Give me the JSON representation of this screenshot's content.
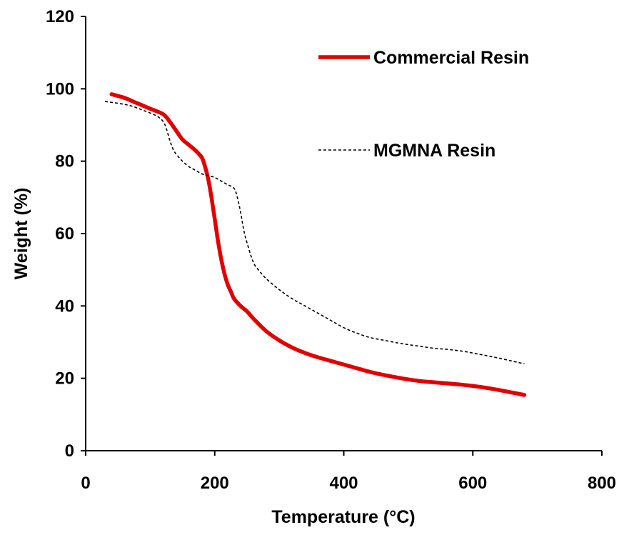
{
  "chart_data": {
    "type": "line",
    "title": "",
    "xlabel": "Temperature (°C)",
    "ylabel": "Weight  (%)",
    "xlim": [
      0,
      800
    ],
    "ylim": [
      0,
      120
    ],
    "xticks": [
      0,
      200,
      400,
      600,
      800
    ],
    "yticks": [
      0,
      20,
      40,
      60,
      80,
      100,
      120
    ],
    "grid": false,
    "legend_position": "top-right",
    "series": [
      {
        "name": "Commercial Resin",
        "color": "#e00000",
        "style": "solid",
        "x": [
          40,
          60,
          80,
          100,
          120,
          130,
          140,
          150,
          160,
          170,
          180,
          185,
          190,
          195,
          200,
          205,
          210,
          215,
          220,
          225,
          230,
          240,
          250,
          260,
          280,
          300,
          320,
          340,
          360,
          380,
          400,
          420,
          440,
          460,
          480,
          500,
          520,
          540,
          560,
          580,
          600,
          620,
          640,
          660,
          680
        ],
        "y": [
          98.5,
          97.5,
          96.0,
          94.5,
          93.0,
          91.0,
          88.5,
          86.0,
          84.5,
          83.0,
          81.0,
          78.5,
          75.0,
          70.0,
          64.0,
          58.0,
          53.0,
          49.0,
          46.0,
          44.0,
          42.0,
          40.0,
          38.5,
          36.5,
          33.0,
          30.5,
          28.5,
          27.0,
          25.8,
          24.8,
          23.8,
          22.8,
          21.8,
          21.0,
          20.3,
          19.7,
          19.2,
          18.9,
          18.6,
          18.3,
          17.9,
          17.4,
          16.8,
          16.1,
          15.4
        ]
      },
      {
        "name": "MGMNA Resin",
        "color": "#000000",
        "style": "dashed",
        "x": [
          30,
          50,
          70,
          90,
          110,
          120,
          125,
          130,
          135,
          140,
          150,
          160,
          170,
          180,
          190,
          200,
          210,
          220,
          230,
          235,
          240,
          245,
          250,
          260,
          270,
          280,
          300,
          320,
          340,
          360,
          380,
          400,
          420,
          440,
          460,
          480,
          500,
          520,
          540,
          560,
          580,
          600,
          620,
          640,
          660,
          680
        ],
        "y": [
          96.5,
          96.0,
          95.3,
          94.0,
          92.5,
          91.0,
          89.0,
          86.0,
          83.5,
          82.0,
          80.0,
          78.5,
          77.5,
          76.5,
          76.0,
          75.5,
          74.5,
          73.5,
          72.5,
          70.0,
          66.0,
          61.0,
          57.5,
          52.0,
          49.5,
          47.5,
          44.5,
          42.0,
          40.0,
          38.0,
          36.0,
          34.0,
          32.5,
          31.3,
          30.6,
          29.9,
          29.3,
          28.8,
          28.3,
          28.0,
          27.6,
          27.0,
          26.3,
          25.6,
          24.8,
          24.0
        ]
      }
    ]
  }
}
